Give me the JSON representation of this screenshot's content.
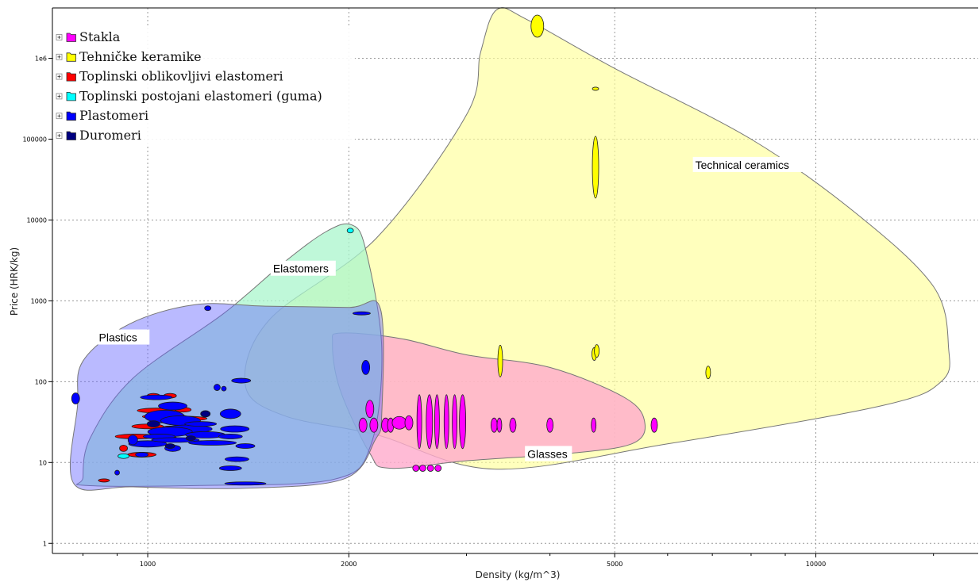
{
  "chart_data": {
    "type": "scatter",
    "title": "",
    "xlabel": "Density (kg/m^3)",
    "ylabel": "Price (HRK/kg)",
    "x_scale": "log",
    "y_scale": "log",
    "xlim": [
      720,
      17500
    ],
    "ylim": [
      0.75,
      4200000
    ],
    "grid": true,
    "legend_position": "top-left",
    "x_ticks": [
      {
        "value": 1000,
        "label": "1000"
      },
      {
        "value": 2000,
        "label": "2000"
      },
      {
        "value": 5000,
        "label": "5000"
      },
      {
        "value": 10000,
        "label": "10000"
      }
    ],
    "y_ticks": [
      {
        "value": 1,
        "label": "1"
      },
      {
        "value": 10,
        "label": "10"
      },
      {
        "value": 100,
        "label": "100"
      },
      {
        "value": 1000,
        "label": "1000"
      },
      {
        "value": 10000,
        "label": "10000"
      },
      {
        "value": 100000,
        "label": "100000"
      },
      {
        "value": 1000000,
        "label": "1e6"
      }
    ],
    "legend": [
      {
        "label": "Stakla",
        "color": "#ff00ff"
      },
      {
        "label": "Tehničke keramike",
        "color": "#ffff00"
      },
      {
        "label": "Toplinski oblikovljivi elastomeri",
        "color": "#ff0000"
      },
      {
        "label": "Toplinski postojani elastomeri (guma)",
        "color": "#00ffff"
      },
      {
        "label": "Plastomeri",
        "color": "#0000ff"
      },
      {
        "label": "Duromeri",
        "color": "#000080"
      }
    ],
    "envelopes": [
      {
        "name": "Technical ceramics",
        "label_anchor": [
          6600,
          47000
        ],
        "fill": "#ffff99",
        "stroke": "#777777",
        "opacity": 0.65,
        "points": [
          [
            1520,
            580
          ],
          [
            2200,
            6000
          ],
          [
            3000,
            200000
          ],
          [
            3150,
            1200000
          ],
          [
            3330,
            4000000
          ],
          [
            3700,
            3000000
          ],
          [
            5000,
            750000
          ],
          [
            8000,
            100000
          ],
          [
            11500,
            12000
          ],
          [
            15000,
            1500
          ],
          [
            15800,
            260
          ],
          [
            15400,
            100
          ],
          [
            12500,
            50
          ],
          [
            6000,
            17
          ],
          [
            3300,
            8.3
          ],
          [
            2200,
            22
          ],
          [
            1600,
            38
          ],
          [
            1400,
            90
          ]
        ]
      },
      {
        "name": "Glasses",
        "label_anchor": [
          3700,
          12.5
        ],
        "fill": "#ffaacc",
        "stroke": "#777777",
        "opacity": 0.8,
        "points": [
          [
            1950,
            400
          ],
          [
            2400,
            340
          ],
          [
            3000,
            215
          ],
          [
            4000,
            150
          ],
          [
            5200,
            62
          ],
          [
            5550,
            30
          ],
          [
            5300,
            17
          ],
          [
            4300,
            13
          ],
          [
            3000,
            10.5
          ],
          [
            2300,
            8.5
          ],
          [
            2150,
            13
          ],
          [
            1940,
            80
          ],
          [
            1890,
            300
          ]
        ]
      },
      {
        "name": "Elastomers",
        "label_anchor": [
          1540,
          2450
        ],
        "fill": "#aaf5cc",
        "stroke": "#777777",
        "opacity": 0.75,
        "points": [
          [
            800,
            6.5
          ],
          [
            820,
            20
          ],
          [
            950,
            110
          ],
          [
            1300,
            700
          ],
          [
            1600,
            3000
          ],
          [
            1850,
            7200
          ],
          [
            2020,
            8700
          ],
          [
            2120,
            4300
          ],
          [
            2240,
            260
          ],
          [
            2160,
            17
          ],
          [
            1900,
            6.2
          ],
          [
            1200,
            5.2
          ],
          [
            810,
            5.2
          ]
        ]
      },
      {
        "name": "Plastics",
        "label_anchor": [
          845,
          345
        ],
        "fill": "#6666ff",
        "stroke": "#777777",
        "opacity": 0.45,
        "points": [
          [
            775,
            5.5
          ],
          [
            785,
            50
          ],
          [
            800,
            180
          ],
          [
            940,
            520
          ],
          [
            1180,
            900
          ],
          [
            1500,
            860
          ],
          [
            2000,
            830
          ],
          [
            2230,
            800
          ],
          [
            2240,
            40
          ],
          [
            2190,
            19
          ],
          [
            1970,
            6.3
          ],
          [
            1400,
            4.8
          ],
          [
            950,
            5
          ]
        ]
      }
    ],
    "series": [
      {
        "name": "Stakla",
        "color": "#ff00ff",
        "points": [
          {
            "x": 2550,
            "y": 32,
            "rx": 3,
            "ry": 34
          },
          {
            "x": 2640,
            "y": 32,
            "rx": 4,
            "ry": 34
          },
          {
            "x": 2710,
            "y": 32,
            "rx": 3,
            "ry": 34
          },
          {
            "x": 2800,
            "y": 32,
            "rx": 3,
            "ry": 34
          },
          {
            "x": 2880,
            "y": 32,
            "rx": 3,
            "ry": 34
          },
          {
            "x": 2960,
            "y": 32,
            "rx": 4,
            "ry": 34
          },
          {
            "x": 2100,
            "y": 29,
            "rx": 5,
            "ry": 9
          },
          {
            "x": 2180,
            "y": 29,
            "rx": 5,
            "ry": 9
          },
          {
            "x": 2270,
            "y": 29,
            "rx": 5,
            "ry": 9
          },
          {
            "x": 2310,
            "y": 29,
            "rx": 4,
            "ry": 9
          },
          {
            "x": 2380,
            "y": 31,
            "rx": 9,
            "ry": 8
          },
          {
            "x": 2460,
            "y": 31,
            "rx": 5,
            "ry": 9
          },
          {
            "x": 2150,
            "y": 46,
            "rx": 5,
            "ry": 11
          },
          {
            "x": 3300,
            "y": 29,
            "rx": 4,
            "ry": 9
          },
          {
            "x": 3360,
            "y": 29,
            "rx": 3,
            "ry": 9
          },
          {
            "x": 3520,
            "y": 29,
            "rx": 4,
            "ry": 9
          },
          {
            "x": 4000,
            "y": 29,
            "rx": 4,
            "ry": 9
          },
          {
            "x": 4650,
            "y": 29,
            "rx": 3,
            "ry": 9
          },
          {
            "x": 5730,
            "y": 29,
            "rx": 4,
            "ry": 9
          },
          {
            "x": 2520,
            "y": 8.5,
            "rx": 4,
            "ry": 4
          },
          {
            "x": 2580,
            "y": 8.5,
            "rx": 4,
            "ry": 4
          },
          {
            "x": 2650,
            "y": 8.5,
            "rx": 4,
            "ry": 4
          },
          {
            "x": 2720,
            "y": 8.5,
            "rx": 4,
            "ry": 4
          }
        ]
      },
      {
        "name": "Tehničke keramike",
        "color": "#ffff00",
        "points": [
          {
            "x": 3830,
            "y": 2500000,
            "rx": 8,
            "ry": 14
          },
          {
            "x": 4680,
            "y": 420000,
            "rx": 4,
            "ry": 2
          },
          {
            "x": 4680,
            "y": 45000,
            "rx": 4,
            "ry": 39
          },
          {
            "x": 3370,
            "y": 180,
            "rx": 3,
            "ry": 20
          },
          {
            "x": 4660,
            "y": 220,
            "rx": 3,
            "ry": 8
          },
          {
            "x": 4700,
            "y": 240,
            "rx": 3,
            "ry": 8
          },
          {
            "x": 6900,
            "y": 130,
            "rx": 3,
            "ry": 8
          }
        ]
      },
      {
        "name": "Toplinski oblikovljivi elastomeri",
        "color": "#ff0000",
        "points": [
          {
            "x": 960,
            "y": 21,
            "rx": 26,
            "ry": 3
          },
          {
            "x": 1000,
            "y": 28,
            "rx": 20,
            "ry": 3
          },
          {
            "x": 1030,
            "y": 44,
            "rx": 24,
            "ry": 3
          },
          {
            "x": 1060,
            "y": 37,
            "rx": 28,
            "ry": 3
          },
          {
            "x": 1130,
            "y": 35,
            "rx": 30,
            "ry": 3
          },
          {
            "x": 980,
            "y": 12.5,
            "rx": 18,
            "ry": 3
          },
          {
            "x": 1070,
            "y": 20,
            "rx": 12,
            "ry": 3
          },
          {
            "x": 1130,
            "y": 45,
            "rx": 10,
            "ry": 3
          },
          {
            "x": 920,
            "y": 15,
            "rx": 5,
            "ry": 4
          },
          {
            "x": 860,
            "y": 6,
            "rx": 7,
            "ry": 2
          },
          {
            "x": 1020,
            "y": 67,
            "rx": 8,
            "ry": 3
          },
          {
            "x": 1080,
            "y": 67,
            "rx": 8,
            "ry": 3
          },
          {
            "x": 1180,
            "y": 30,
            "rx": 12,
            "ry": 3
          },
          {
            "x": 1080,
            "y": 27,
            "rx": 10,
            "ry": 2
          },
          {
            "x": 1150,
            "y": 24,
            "rx": 8,
            "ry": 3
          }
        ]
      },
      {
        "name": "Toplinski postojani elastomeri (guma)",
        "color": "#00ffff",
        "points": [
          {
            "x": 2010,
            "y": 7400,
            "rx": 4,
            "ry": 3
          },
          {
            "x": 920,
            "y": 12,
            "rx": 7,
            "ry": 3
          }
        ]
      },
      {
        "name": "Plastomeri",
        "color": "#0000ff",
        "points": [
          {
            "x": 780,
            "y": 62,
            "rx": 5,
            "ry": 7
          },
          {
            "x": 1230,
            "y": 810,
            "rx": 4,
            "ry": 3
          },
          {
            "x": 2090,
            "y": 700,
            "rx": 11,
            "ry": 2
          },
          {
            "x": 2120,
            "y": 150,
            "rx": 5,
            "ry": 9
          },
          {
            "x": 1380,
            "y": 103,
            "rx": 12,
            "ry": 3
          },
          {
            "x": 1270,
            "y": 85,
            "rx": 4,
            "ry": 4
          },
          {
            "x": 1300,
            "y": 82,
            "rx": 3,
            "ry": 3
          },
          {
            "x": 1030,
            "y": 64,
            "rx": 20,
            "ry": 3
          },
          {
            "x": 1090,
            "y": 50,
            "rx": 18,
            "ry": 5
          },
          {
            "x": 1060,
            "y": 37,
            "rx": 25,
            "ry": 8
          },
          {
            "x": 1120,
            "y": 33,
            "rx": 25,
            "ry": 6
          },
          {
            "x": 1150,
            "y": 26,
            "rx": 30,
            "ry": 5
          },
          {
            "x": 1080,
            "y": 24,
            "rx": 28,
            "ry": 6
          },
          {
            "x": 1220,
            "y": 22,
            "rx": 25,
            "ry": 4
          },
          {
            "x": 1040,
            "y": 21,
            "rx": 20,
            "ry": 3
          },
          {
            "x": 1000,
            "y": 17,
            "rx": 24,
            "ry": 4
          },
          {
            "x": 1100,
            "y": 19,
            "rx": 30,
            "ry": 3
          },
          {
            "x": 1250,
            "y": 17.5,
            "rx": 30,
            "ry": 3
          },
          {
            "x": 950,
            "y": 19,
            "rx": 6,
            "ry": 6
          },
          {
            "x": 1090,
            "y": 15,
            "rx": 10,
            "ry": 4
          },
          {
            "x": 1330,
            "y": 40,
            "rx": 13,
            "ry": 6
          },
          {
            "x": 1350,
            "y": 26,
            "rx": 18,
            "ry": 4
          },
          {
            "x": 1330,
            "y": 21,
            "rx": 15,
            "ry": 3
          },
          {
            "x": 1400,
            "y": 16,
            "rx": 12,
            "ry": 3
          },
          {
            "x": 1360,
            "y": 11,
            "rx": 15,
            "ry": 3
          },
          {
            "x": 1330,
            "y": 8.5,
            "rx": 14,
            "ry": 3
          },
          {
            "x": 1400,
            "y": 5.5,
            "rx": 26,
            "ry": 2
          },
          {
            "x": 900,
            "y": 7.5,
            "rx": 3,
            "ry": 3
          },
          {
            "x": 1200,
            "y": 30,
            "rx": 20,
            "ry": 3
          },
          {
            "x": 980,
            "y": 12.5,
            "rx": 8,
            "ry": 3
          }
        ]
      },
      {
        "name": "Duromeri",
        "color": "#000080",
        "points": [
          {
            "x": 1220,
            "y": 40,
            "rx": 6,
            "ry": 4
          },
          {
            "x": 1020,
            "y": 30,
            "rx": 8,
            "ry": 4
          },
          {
            "x": 1160,
            "y": 20,
            "rx": 6,
            "ry": 3
          },
          {
            "x": 1080,
            "y": 16,
            "rx": 6,
            "ry": 3
          }
        ]
      }
    ]
  }
}
